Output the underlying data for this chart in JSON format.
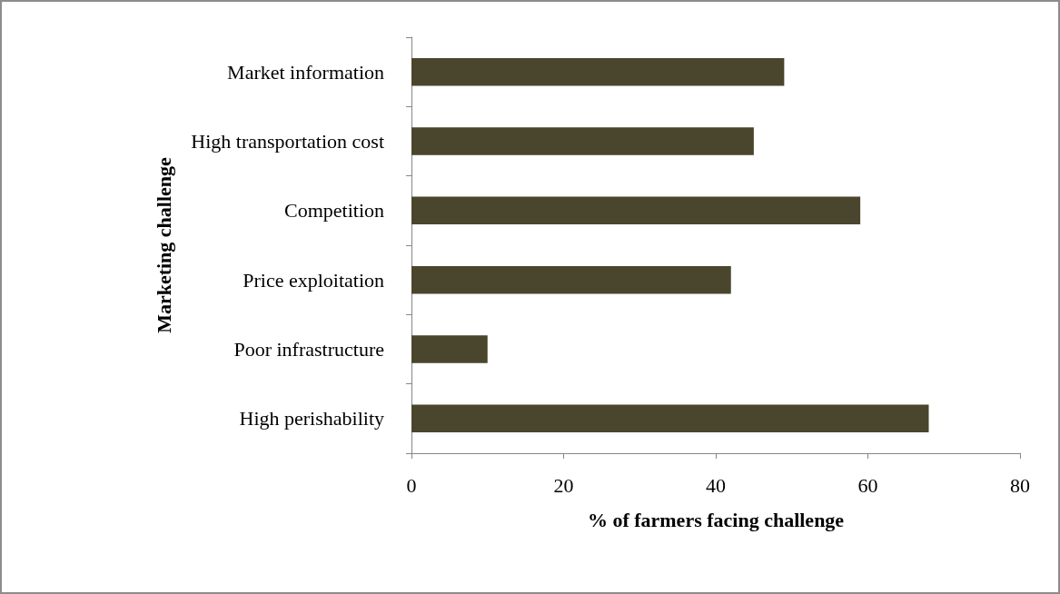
{
  "chart_data": {
    "type": "bar",
    "orientation": "horizontal",
    "xlabel": "% of farmers facing challenge",
    "ylabel": "Marketing challenge",
    "categories": [
      "Market information",
      "High transportation cost",
      "Competition",
      "Price exploitation",
      "Poor infrastructure",
      "High perishability"
    ],
    "values": [
      49,
      45,
      59,
      42,
      10,
      68
    ],
    "color": "#4a452d",
    "xlim": [
      0,
      80
    ],
    "xticks": [
      0,
      20,
      40,
      60,
      80
    ],
    "grid": false
  }
}
